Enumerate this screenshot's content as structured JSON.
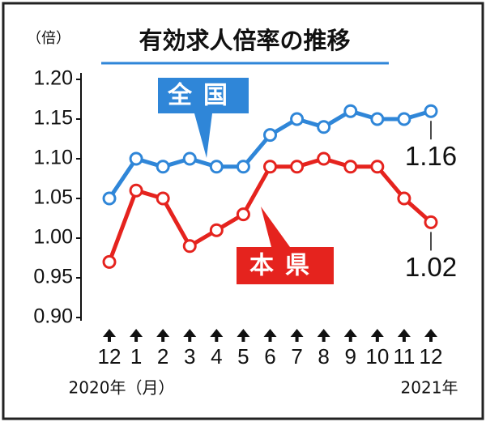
{
  "chart_data": {
    "type": "line",
    "title": "有効求人倍率の推移",
    "y_label": "（倍）",
    "x_start_label": "2020年（月）",
    "x_end_label": "2021年",
    "categories": [
      "12",
      "1",
      "2",
      "3",
      "4",
      "5",
      "6",
      "7",
      "8",
      "9",
      "10",
      "11",
      "12"
    ],
    "series": [
      {
        "name": "全国",
        "color": "#2f86d8",
        "values": [
          1.05,
          1.1,
          1.09,
          1.1,
          1.09,
          1.09,
          1.13,
          1.15,
          1.14,
          1.16,
          1.15,
          1.15,
          1.16
        ]
      },
      {
        "name": "本県",
        "color": "#e5231e",
        "values": [
          0.97,
          1.06,
          1.05,
          0.99,
          1.01,
          1.03,
          1.09,
          1.09,
          1.1,
          1.09,
          1.09,
          1.05,
          1.02
        ]
      }
    ],
    "ylim": [
      0.9,
      1.2
    ],
    "yticks": [
      {
        "value": 0.9,
        "label": "0.90"
      },
      0.95,
      {
        "value": 1.0,
        "label": "1.00"
      },
      1.05,
      {
        "value": 1.1,
        "label": "1.10"
      },
      1.15,
      {
        "value": 1.2,
        "label": "1.20"
      }
    ]
  }
}
